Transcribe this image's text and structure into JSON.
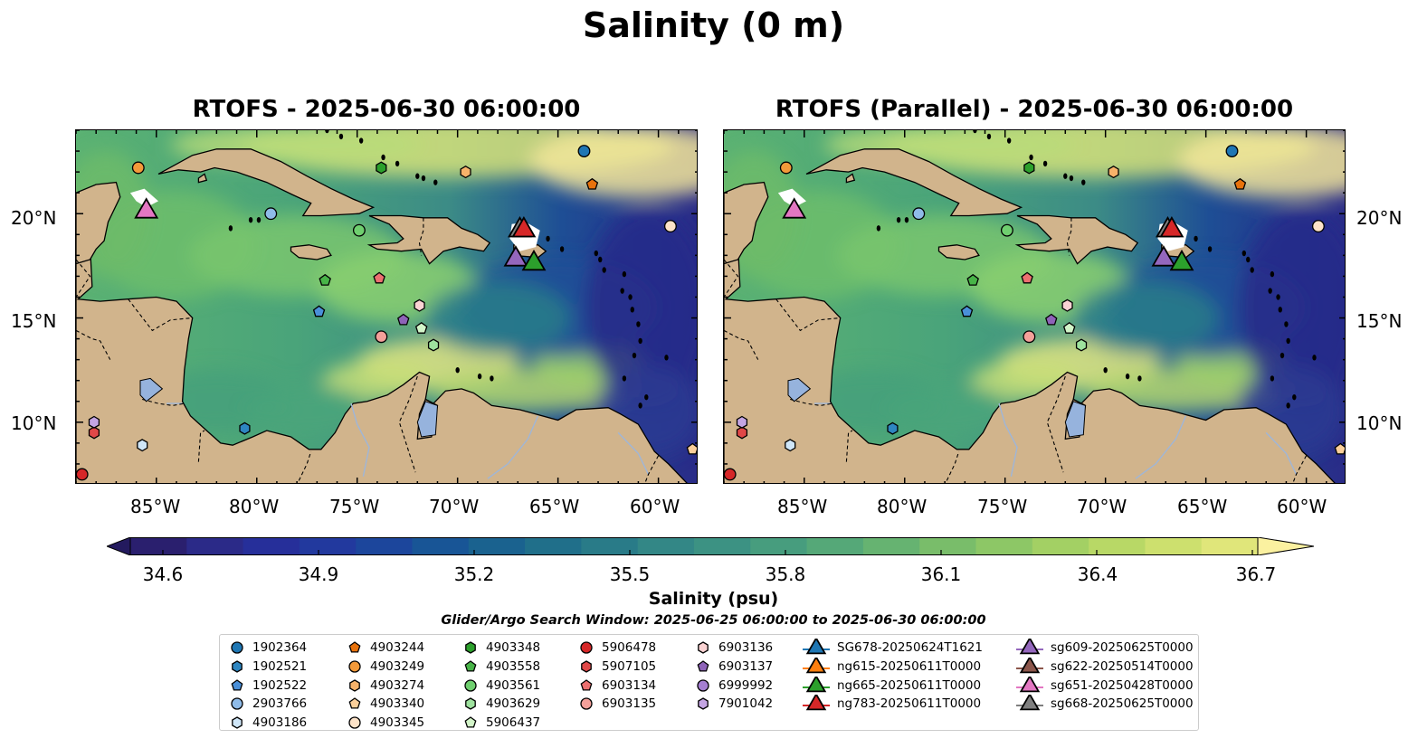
{
  "figure": {
    "suptitle": "Salinity (0 m)",
    "panels": [
      {
        "title": "RTOFS - 2025-06-30 06:00:00"
      },
      {
        "title": "RTOFS (Parallel) - 2025-06-30 06:00:00"
      }
    ],
    "lon_ticks": [
      "85°W",
      "80°W",
      "75°W",
      "70°W",
      "65°W",
      "60°W"
    ],
    "lat_ticks": [
      "20°N",
      "15°N",
      "10°N"
    ],
    "lon_range": [
      -89,
      -58
    ],
    "lat_range": [
      7,
      24
    ]
  },
  "colorbar": {
    "label": "Salinity (psu)",
    "ticks": [
      "34.6",
      "34.9",
      "35.2",
      "35.5",
      "35.8",
      "36.1",
      "36.4",
      "36.7"
    ],
    "range": [
      34.6,
      36.7
    ],
    "extend": "both"
  },
  "search_window": "Glider/Argo Search Window: 2025-06-25 06:00:00 to 2025-06-30 06:00:00",
  "legend": {
    "columns": [
      [
        {
          "label": "1902364",
          "marker": "circle",
          "color": "#1f77b4"
        },
        {
          "label": "1902521",
          "marker": "hexagon",
          "color": "#2e86c1"
        },
        {
          "label": "1902522",
          "marker": "pentagon",
          "color": "#4a90d9"
        },
        {
          "label": "2903766",
          "marker": "circle",
          "color": "#8fbbe8"
        },
        {
          "label": "4903186",
          "marker": "hexagon",
          "color": "#cfe6f8"
        }
      ],
      [
        {
          "label": "4903244",
          "marker": "pentagon",
          "color": "#e8720c"
        },
        {
          "label": "4903249",
          "marker": "circle",
          "color": "#f39a3a"
        },
        {
          "label": "4903274",
          "marker": "hexagon",
          "color": "#f7b26a"
        },
        {
          "label": "4903340",
          "marker": "pentagon",
          "color": "#fbcf9a"
        },
        {
          "label": "4903345",
          "marker": "circle",
          "color": "#fde3c8"
        }
      ],
      [
        {
          "label": "4903348",
          "marker": "hexagon",
          "color": "#2ca02c"
        },
        {
          "label": "4903558",
          "marker": "pentagon",
          "color": "#48b448"
        },
        {
          "label": "4903561",
          "marker": "circle",
          "color": "#6fcf6f"
        },
        {
          "label": "4903629",
          "marker": "hexagon",
          "color": "#9ee29e"
        },
        {
          "label": "5906437",
          "marker": "pentagon",
          "color": "#d3f5c9"
        }
      ],
      [
        {
          "label": "5906478",
          "marker": "circle",
          "color": "#d62728"
        },
        {
          "label": "5907105",
          "marker": "hexagon",
          "color": "#e04848"
        },
        {
          "label": "6903134",
          "marker": "pentagon",
          "color": "#ec7070"
        },
        {
          "label": "6903135",
          "marker": "circle",
          "color": "#f4a09a"
        }
      ],
      [
        {
          "label": "6903136",
          "marker": "hexagon",
          "color": "#fbd3d3"
        },
        {
          "label": "6903137",
          "marker": "pentagon",
          "color": "#8e63b8"
        },
        {
          "label": "6999992",
          "marker": "circle",
          "color": "#a57fd1"
        },
        {
          "label": "7901042",
          "marker": "hexagon",
          "color": "#c4a5e3"
        }
      ],
      [
        {
          "label": "SG678-20250624T1621",
          "marker": "triangle",
          "color": "#1f77b4"
        },
        {
          "label": "ng615-20250611T0000",
          "marker": "triangle",
          "color": "#ff7f0e"
        },
        {
          "label": "ng665-20250611T0000",
          "marker": "triangle",
          "color": "#2ca02c"
        },
        {
          "label": "ng783-20250611T0000",
          "marker": "triangle",
          "color": "#d62728"
        }
      ],
      [
        {
          "label": "sg609-20250625T0000",
          "marker": "triangle",
          "color": "#9467bd"
        },
        {
          "label": "sg622-20250514T0000",
          "marker": "triangle",
          "color": "#8c564b"
        },
        {
          "label": "sg651-20250428T0000",
          "marker": "triangle",
          "color": "#e377c2"
        },
        {
          "label": "sg668-20250625T0000",
          "marker": "triangle",
          "color": "#7f7f7f"
        }
      ]
    ]
  },
  "floats": [
    {
      "id": "1902364",
      "lon": -63.7,
      "lat": 23.0,
      "marker": "circle",
      "color": "#1f77b4"
    },
    {
      "id": "1902521",
      "lon": -80.6,
      "lat": 9.7,
      "marker": "hexagon",
      "color": "#2e86c1"
    },
    {
      "id": "1902522",
      "lon": -76.9,
      "lat": 15.3,
      "marker": "pentagon",
      "color": "#4a90d9"
    },
    {
      "id": "2903766",
      "lon": -79.3,
      "lat": 20.0,
      "marker": "circle",
      "color": "#8fbbe8"
    },
    {
      "id": "4903186",
      "lon": -85.7,
      "lat": 8.9,
      "marker": "hexagon",
      "color": "#cfe6f8"
    },
    {
      "id": "4903244",
      "lon": -63.3,
      "lat": 21.4,
      "marker": "pentagon",
      "color": "#e8720c"
    },
    {
      "id": "4903249",
      "lon": -85.9,
      "lat": 22.2,
      "marker": "circle",
      "color": "#f39a3a"
    },
    {
      "id": "4903274",
      "lon": -69.6,
      "lat": 22.0,
      "marker": "hexagon",
      "color": "#f7b26a"
    },
    {
      "id": "4903340",
      "lon": -58.3,
      "lat": 8.7,
      "marker": "pentagon",
      "color": "#fbcf9a"
    },
    {
      "id": "4903345",
      "lon": -59.4,
      "lat": 19.4,
      "marker": "circle",
      "color": "#fde3c8"
    },
    {
      "id": "4903348",
      "lon": -73.8,
      "lat": 22.2,
      "marker": "hexagon",
      "color": "#2ca02c"
    },
    {
      "id": "4903558",
      "lon": -76.6,
      "lat": 16.8,
      "marker": "pentagon",
      "color": "#48b448"
    },
    {
      "id": "4903561",
      "lon": -74.9,
      "lat": 19.2,
      "marker": "circle",
      "color": "#6fcf6f"
    },
    {
      "id": "4903629",
      "lon": -71.2,
      "lat": 13.7,
      "marker": "hexagon",
      "color": "#9ee29e"
    },
    {
      "id": "5906437",
      "lon": -71.8,
      "lat": 14.5,
      "marker": "pentagon",
      "color": "#d3f5c9"
    },
    {
      "id": "5906478",
      "lon": -88.7,
      "lat": 7.5,
      "marker": "circle",
      "color": "#d62728"
    },
    {
      "id": "5907105",
      "lon": -88.1,
      "lat": 9.5,
      "marker": "hexagon",
      "color": "#e04848"
    },
    {
      "id": "6903134",
      "lon": -73.9,
      "lat": 16.9,
      "marker": "pentagon",
      "color": "#ec7070"
    },
    {
      "id": "6903135",
      "lon": -73.8,
      "lat": 14.1,
      "marker": "circle",
      "color": "#f4a09a"
    },
    {
      "id": "6903136",
      "lon": -71.9,
      "lat": 15.6,
      "marker": "hexagon",
      "color": "#fbd3d3"
    },
    {
      "id": "6903137",
      "lon": -72.7,
      "lat": 14.9,
      "marker": "pentagon",
      "color": "#8e63b8"
    },
    {
      "id": "7901042",
      "lon": -88.1,
      "lat": 10.0,
      "marker": "hexagon",
      "color": "#c4a5e3"
    }
  ],
  "gliders": [
    {
      "id": "sg668-20250625T0000",
      "lon": -66.9,
      "lat": 19.3,
      "color": "#7f7f7f"
    },
    {
      "id": "ng783-20250611T0000",
      "lon": -66.7,
      "lat": 19.3,
      "color": "#d62728"
    },
    {
      "id": "sg609-20250625T0000",
      "lon": -67.1,
      "lat": 17.9,
      "color": "#9467bd"
    },
    {
      "id": "ng665-20250611T0000",
      "lon": -66.2,
      "lat": 17.7,
      "color": "#2ca02c"
    },
    {
      "id": "sg651-20250428T0000",
      "lon": -85.5,
      "lat": 20.2,
      "color": "#e377c2"
    }
  ]
}
